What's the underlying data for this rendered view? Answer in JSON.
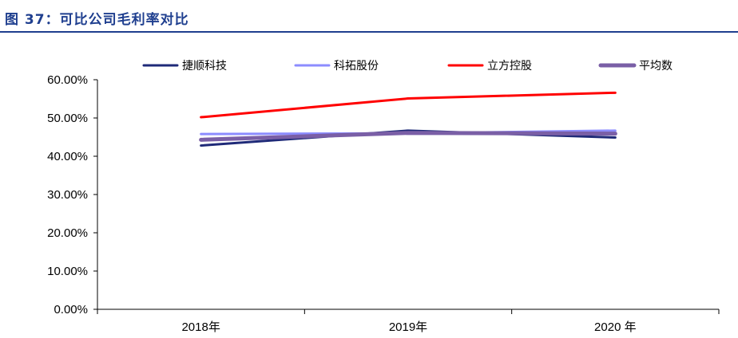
{
  "figure": {
    "title": "图 37：可比公司毛利率对比"
  },
  "chart_data": {
    "type": "line",
    "title": "",
    "xlabel": "",
    "ylabel": "",
    "categories": [
      "2018年",
      "2019年",
      "2020 年"
    ],
    "y_ticks": [
      "0.00%",
      "10.00%",
      "20.00%",
      "30.00%",
      "40.00%",
      "50.00%",
      "60.00%"
    ],
    "ylim": [
      0,
      60
    ],
    "grid": false,
    "legend_position": "top",
    "series": [
      {
        "name": "捷顺科技",
        "color": "#1f2a78",
        "values": [
          42.8,
          46.7,
          44.9
        ]
      },
      {
        "name": "科拓股份",
        "color": "#8c8cff",
        "values": [
          45.8,
          46.0,
          46.7
        ]
      },
      {
        "name": "立方控股",
        "color": "#ff0000",
        "values": [
          50.2,
          55.1,
          56.6
        ]
      },
      {
        "name": "平均数",
        "color": "#7a5fa6",
        "values": [
          44.3,
          46.1,
          45.9
        ]
      }
    ]
  }
}
